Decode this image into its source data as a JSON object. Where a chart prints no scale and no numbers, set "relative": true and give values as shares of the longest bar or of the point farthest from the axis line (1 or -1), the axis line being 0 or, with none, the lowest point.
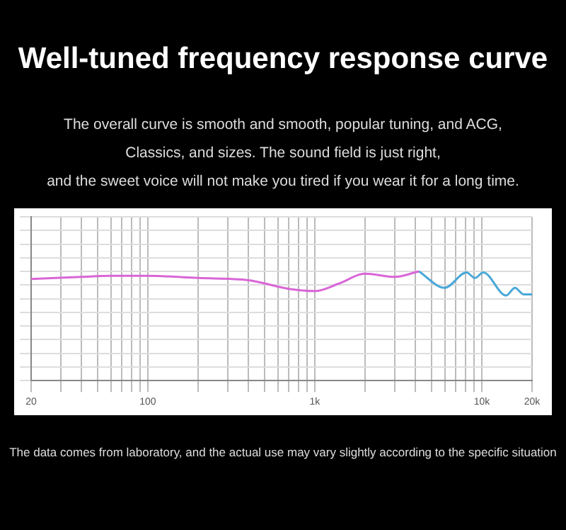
{
  "chart_data": {
    "type": "line",
    "title": "Well-tuned frequency response curve",
    "subtitle": "The overall curve is smooth and smooth, popular tuning, and ACG,\nClassics, and sizes. The sound field is just right,\nand the sweet voice will not make you tired if you wear it for a long time.",
    "annotations": [
      "The data comes from laboratory, and the actual use may vary slightly according to the specific situation"
    ],
    "relative": true,
    "log": "x",
    "grid": true,
    "tick_labels": "x",
    "legend": false,
    "marker": "none",
    "line_style": "solid",
    "xlim": [
      20,
      20000
    ],
    "xticks": [
      20,
      {
        "value": 30,
        "label": null
      },
      {
        "value": 40,
        "label": null
      },
      {
        "value": 50,
        "label": null
      },
      {
        "value": 60,
        "label": null
      },
      {
        "value": 70,
        "label": null
      },
      {
        "value": 80,
        "label": null
      },
      {
        "value": 90,
        "label": null
      },
      100,
      {
        "value": 200,
        "label": null
      },
      {
        "value": 300,
        "label": null
      },
      {
        "value": 400,
        "label": null
      },
      {
        "value": 500,
        "label": null
      },
      {
        "value": 600,
        "label": null
      },
      {
        "value": 700,
        "label": null
      },
      {
        "value": 800,
        "label": null
      },
      {
        "value": 900,
        "label": null
      },
      {
        "value": 1000,
        "label": "1k"
      },
      {
        "value": 2000,
        "label": null
      },
      {
        "value": 3000,
        "label": null
      },
      {
        "value": 4000,
        "label": null
      },
      {
        "value": 5000,
        "label": null
      },
      {
        "value": 6000,
        "label": null
      },
      {
        "value": 7000,
        "label": null
      },
      {
        "value": 8000,
        "label": null
      },
      {
        "value": 9000,
        "label": null
      },
      {
        "value": 10000,
        "label": "10k"
      },
      {
        "value": 20000,
        "label": "20k"
      }
    ],
    "series": [
      {
        "color": "#d966d6",
        "x": [
          20,
          40,
          60,
          100,
          200,
          400,
          700,
          1000,
          1400,
          2000,
          3000,
          4200
        ],
        "values": [
          0.93,
          0.95,
          0.96,
          0.96,
          0.94,
          0.92,
          0.84,
          0.82,
          0.89,
          0.98,
          0.95,
          1
        ]
      },
      {
        "color": "#4aa8d8",
        "x": [
          4200,
          6000,
          8100,
          9100,
          10200,
          14000,
          15800,
          17800,
          20000
        ],
        "values": [
          1,
          0.85,
          0.99,
          0.94,
          0.99,
          0.78,
          0.85,
          0.79,
          0.79
        ]
      }
    ]
  }
}
